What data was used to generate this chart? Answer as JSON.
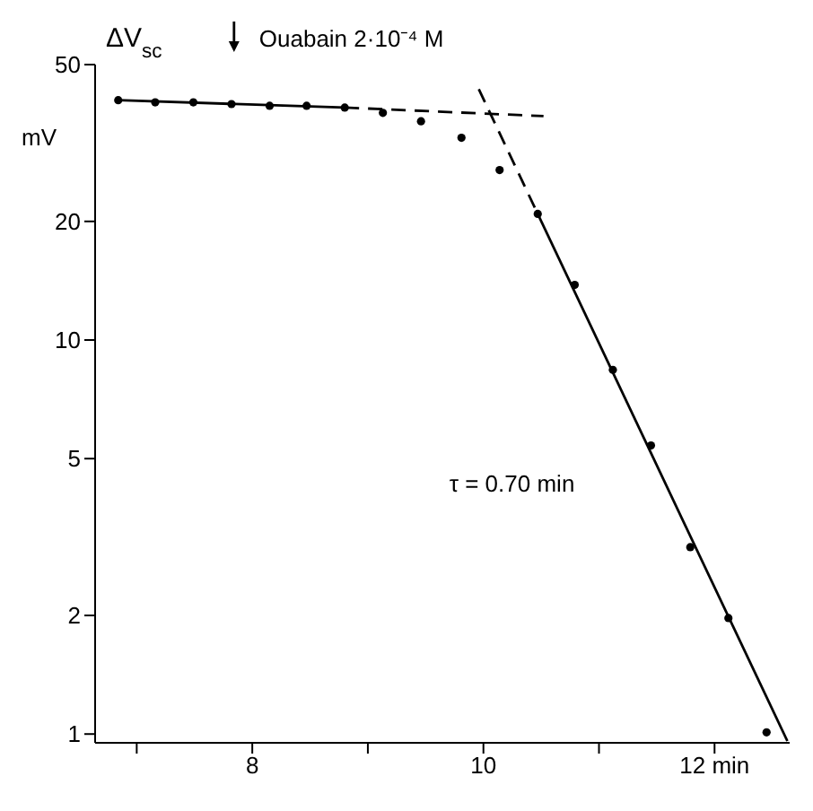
{
  "chart_data": {
    "type": "scatter",
    "ylabel": "ΔV$_{sc}$",
    "annotations": [
      "mV",
      "Ouabain 2·10⁻⁴ M",
      "τ = 0.70 min"
    ],
    "xlim": [
      6.64,
      12.65
    ],
    "xticks": [
      {
        "value": 7,
        "label": null
      },
      8,
      {
        "value": 9,
        "label": null
      },
      10,
      {
        "value": 11,
        "label": null
      },
      {
        "value": 12,
        "label": "12 min"
      }
    ],
    "ylim": [
      0.95,
      50
    ],
    "yticks": [
      1,
      2,
      5,
      10,
      20,
      50
    ],
    "log": "y",
    "marker": "circle",
    "series": [
      {
        "color": "#000000",
        "x": [
          6.84,
          7.16,
          7.49,
          7.82,
          8.15,
          8.47,
          8.8,
          9.13,
          9.46,
          9.81,
          10.14,
          10.47,
          10.79,
          11.12,
          11.45,
          11.79,
          12.12,
          12.45
        ],
        "values": [
          40.6,
          40.1,
          40.1,
          39.7,
          39.3,
          39.3,
          38.9,
          37.7,
          35.9,
          32.6,
          27.0,
          20.9,
          13.8,
          8.4,
          5.4,
          2.98,
          1.97,
          1.01
        ]
      },
      {
        "type": "line",
        "color": "#000000",
        "line_style": "solid",
        "marker": "none",
        "x": [
          6.84,
          8.8
        ],
        "values": [
          40.6,
          38.9
        ]
      },
      {
        "type": "line",
        "color": "#000000",
        "line_style": "dashed",
        "marker": "none",
        "x": [
          8.8,
          10.52
        ],
        "values": [
          38.9,
          37.0
        ]
      },
      {
        "type": "line",
        "color": "#000000",
        "line_style": "dashed",
        "marker": "none",
        "x": [
          9.96,
          10.47
        ],
        "values": [
          43.3,
          20.9
        ]
      },
      {
        "type": "line",
        "color": "#000000",
        "line_style": "solid",
        "marker": "none",
        "x": [
          10.47,
          12.63
        ],
        "values": [
          20.9,
          0.96
        ]
      }
    ]
  }
}
